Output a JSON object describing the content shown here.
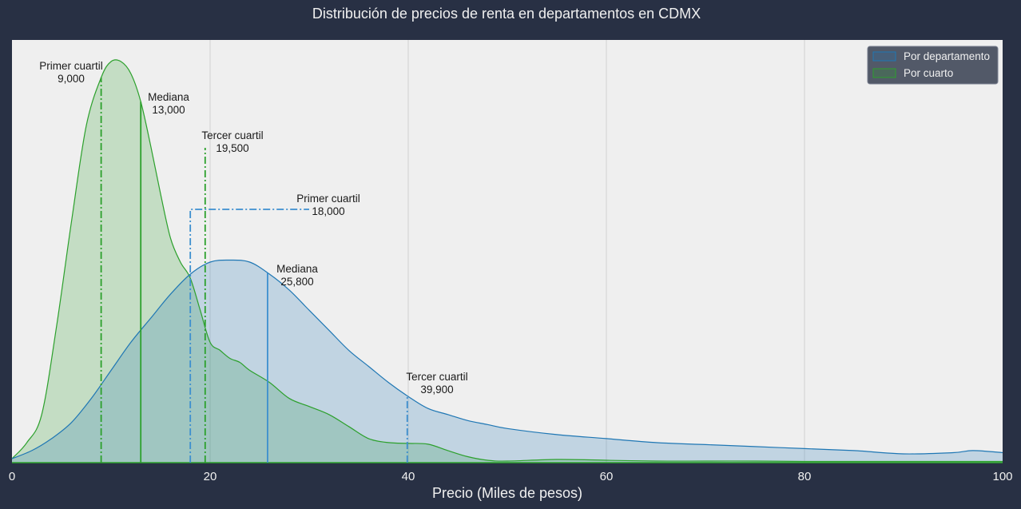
{
  "chart_data": {
    "type": "area",
    "title": "Distribución de precios de renta en departamentos en CDMX",
    "xlabel": "Precio (Miles de pesos)",
    "ylabel": "",
    "xlim": [
      0,
      100
    ],
    "ylim": [
      0,
      1
    ],
    "x_ticks": [
      "0",
      "20",
      "40",
      "60",
      "80",
      "100"
    ],
    "grid": true,
    "legend_position": "top-right",
    "colors": {
      "figure_bg": "#283044",
      "plot_bg": "#efefef",
      "grid": "#d2d2d2",
      "por_departamento": "#1f77b4",
      "por_departamento_fill": "#c5d7e5",
      "por_cuarto": "#2ca02c",
      "por_cuarto_fill": "#c9e2c9",
      "overlap_fill": "#a5cabd",
      "legend_bg": "#525968"
    },
    "series": [
      {
        "name": "Por departamento",
        "key": "por_departamento",
        "x": [
          0,
          2,
          4,
          6,
          8,
          10,
          12,
          14,
          16,
          18,
          20,
          22,
          24,
          26,
          28,
          30,
          32,
          34,
          36,
          38,
          40,
          42,
          44,
          46,
          48,
          50,
          55,
          60,
          65,
          70,
          75,
          80,
          85,
          90,
          95,
          97,
          100
        ],
        "y": [
          0.01,
          0.03,
          0.06,
          0.1,
          0.16,
          0.23,
          0.3,
          0.36,
          0.42,
          0.47,
          0.5,
          0.505,
          0.5,
          0.47,
          0.43,
          0.38,
          0.33,
          0.28,
          0.24,
          0.2,
          0.165,
          0.135,
          0.12,
          0.105,
          0.095,
          0.085,
          0.07,
          0.06,
          0.05,
          0.045,
          0.04,
          0.035,
          0.03,
          0.022,
          0.025,
          0.03,
          0.025
        ]
      },
      {
        "name": "Por cuarto",
        "key": "por_cuarto",
        "x": [
          0,
          1.5,
          3,
          4.5,
          6,
          7.5,
          9,
          10,
          11,
          12,
          13,
          14,
          15,
          16,
          17,
          18,
          19,
          20,
          21,
          22,
          23,
          24,
          26,
          28,
          30,
          32,
          34,
          36,
          38,
          40,
          42,
          44,
          46,
          48,
          50,
          55,
          60,
          65,
          70,
          75,
          80,
          90,
          100
        ],
        "y": [
          0.01,
          0.05,
          0.12,
          0.34,
          0.6,
          0.84,
          0.96,
          1.0,
          1.0,
          0.97,
          0.9,
          0.79,
          0.67,
          0.56,
          0.5,
          0.46,
          0.38,
          0.3,
          0.28,
          0.26,
          0.25,
          0.23,
          0.2,
          0.16,
          0.14,
          0.12,
          0.09,
          0.06,
          0.05,
          0.048,
          0.046,
          0.03,
          0.015,
          0.006,
          0.004,
          0.008,
          0.006,
          0.004,
          0.004,
          0.004,
          0.003,
          0.003,
          0.003
        ]
      }
    ],
    "reference_lines": [
      {
        "series": "Por cuarto",
        "label": "Primer cuartil",
        "value_label": "9,000",
        "x": 9,
        "style": "dashdot",
        "key": "por_cuarto"
      },
      {
        "series": "Por cuarto",
        "label": "Mediana",
        "value_label": "13,000",
        "x": 13,
        "style": "solid",
        "key": "por_cuarto"
      },
      {
        "series": "Por cuarto",
        "label": "Tercer cuartil",
        "value_label": "19,500",
        "x": 19.5,
        "style": "dashdot",
        "key": "por_cuarto"
      },
      {
        "series": "Por departamento",
        "label": "Primer cuartil",
        "value_label": "18,000",
        "x": 18,
        "style": "dashdot",
        "key": "por_departamento"
      },
      {
        "series": "Por departamento",
        "label": "Mediana",
        "value_label": "25,800",
        "x": 25.8,
        "style": "solid",
        "key": "por_departamento"
      },
      {
        "series": "Por departamento",
        "label": "Tercer cuartil",
        "value_label": "39,900",
        "x": 39.9,
        "style": "dashdot",
        "key": "por_departamento"
      }
    ]
  }
}
